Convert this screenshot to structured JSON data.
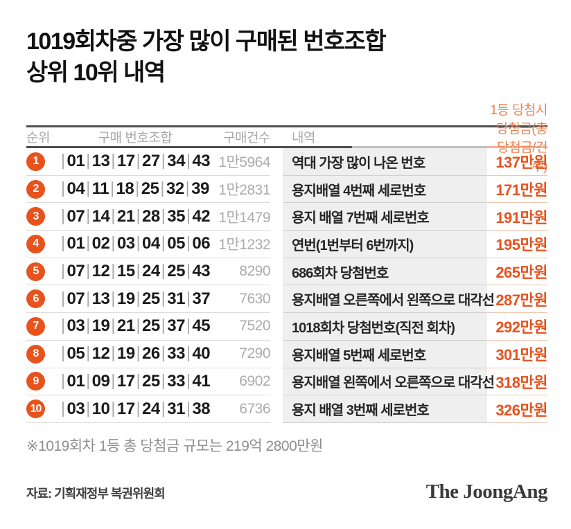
{
  "title": {
    "line1": "1019회차중 가장 많이 구매된 번호조합",
    "line2": "상위 10위 내역"
  },
  "table": {
    "headers": {
      "rank": "순위",
      "combination": "구매 번호조합",
      "count": "구매건수",
      "description": "내역",
      "prize": "1등 당첨시 당첨금(총당첨금/건수)"
    },
    "number_separator": "|",
    "rows": [
      {
        "rank": "1",
        "numbers": [
          "01",
          "13",
          "17",
          "27",
          "34",
          "43"
        ],
        "count": "1만5964",
        "description": "역대 가장 많이 나온 번호",
        "prize": "137만원"
      },
      {
        "rank": "2",
        "numbers": [
          "04",
          "11",
          "18",
          "25",
          "32",
          "39"
        ],
        "count": "1만2831",
        "description": "용지배열 4번째 세로번호",
        "prize": "171만원"
      },
      {
        "rank": "3",
        "numbers": [
          "07",
          "14",
          "21",
          "28",
          "35",
          "42"
        ],
        "count": "1만1479",
        "description": "용지 배열 7번째 세로번호",
        "prize": "191만원"
      },
      {
        "rank": "4",
        "numbers": [
          "01",
          "02",
          "03",
          "04",
          "05",
          "06"
        ],
        "count": "1만1232",
        "description": "연번(1번부터 6번까지)",
        "prize": "195만원"
      },
      {
        "rank": "5",
        "numbers": [
          "07",
          "12",
          "15",
          "24",
          "25",
          "43"
        ],
        "count": "8290",
        "description": "686회차 당첨번호",
        "prize": "265만원"
      },
      {
        "rank": "6",
        "numbers": [
          "07",
          "13",
          "19",
          "25",
          "31",
          "37"
        ],
        "count": "7630",
        "description": "용지배열 오른쪽에서 왼쪽으로 대각선",
        "prize": "287만원"
      },
      {
        "rank": "7",
        "numbers": [
          "03",
          "19",
          "21",
          "25",
          "37",
          "45"
        ],
        "count": "7520",
        "description": "1018회차 당첨번호(직전 회차)",
        "prize": "292만원"
      },
      {
        "rank": "8",
        "numbers": [
          "05",
          "12",
          "19",
          "26",
          "33",
          "40"
        ],
        "count": "7290",
        "description": "용지배열 5번째 세로번호",
        "prize": "301만원"
      },
      {
        "rank": "9",
        "numbers": [
          "01",
          "09",
          "17",
          "25",
          "33",
          "41"
        ],
        "count": "6902",
        "description": "용지배열 왼쪽에서 오른쪽으로 대각선",
        "prize": "318만원"
      },
      {
        "rank": "10",
        "numbers": [
          "03",
          "10",
          "17",
          "24",
          "31",
          "38"
        ],
        "count": "6736",
        "description": "용지 배열 3번째 세로번호",
        "prize": "326만원"
      }
    ]
  },
  "note": "※1019회차 1등 총 당첨금 규모는 219억 2800만원",
  "source": "자료: 기획재정부 복권위원회",
  "publisher": "The JoongAng",
  "colors": {
    "accent": "#e8521d",
    "header-accent": "#ef8150",
    "desc-bg": "#efefef"
  }
}
